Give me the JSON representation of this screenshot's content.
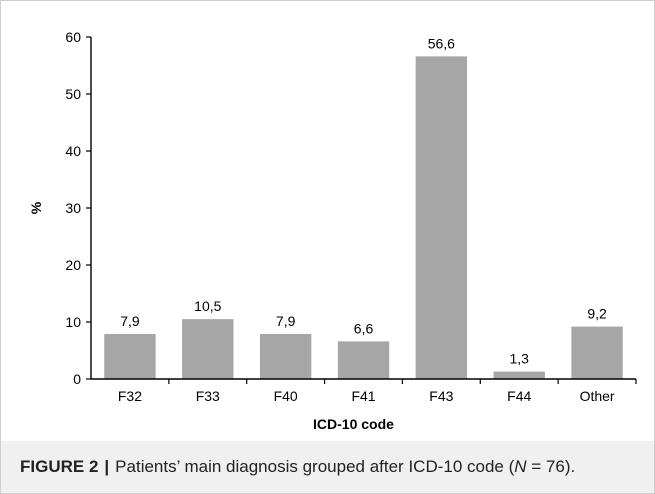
{
  "chart_data": {
    "type": "bar",
    "categories": [
      "F32",
      "F33",
      "F40",
      "F41",
      "F43",
      "F44",
      "Other"
    ],
    "values": [
      7.9,
      10.5,
      7.9,
      6.6,
      56.6,
      1.3,
      9.2
    ],
    "data_labels": [
      "7,9",
      "10,5",
      "7,9",
      "6,6",
      "56,6",
      "1,3",
      "9,2"
    ],
    "title": "",
    "xlabel": "ICD-10 code",
    "ylabel": "%",
    "ylim": [
      0,
      60
    ],
    "yticks": [
      0,
      10,
      20,
      30,
      40,
      50,
      60
    ],
    "grid": false,
    "bar_color": "#a6a6a6"
  },
  "caption": {
    "label": "FIGURE 2",
    "separator": "|",
    "text_before_n": "Patients’ main diagnosis grouped after ICD-10 code (",
    "n_symbol": "N",
    "n_value": " = 76)",
    "text_after_n": "."
  }
}
